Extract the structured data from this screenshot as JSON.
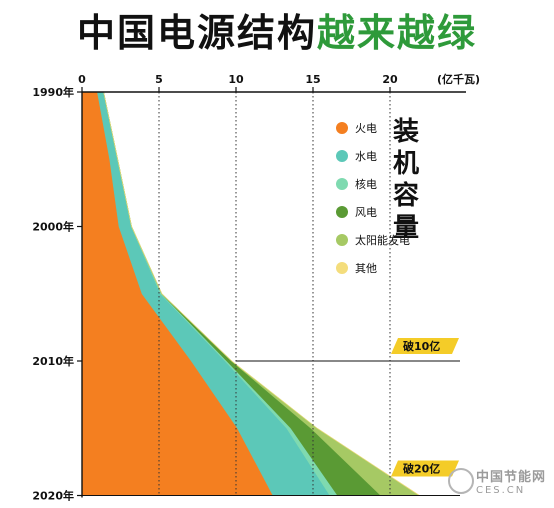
{
  "title": {
    "part1": "中国电源结构",
    "part2": "越来越绿"
  },
  "x_unit": "(亿千瓦)",
  "side_label": [
    "装",
    "机",
    "容",
    "量"
  ],
  "watermark": {
    "main": "中国节能网",
    "sub": "CES.CN"
  },
  "colors": {
    "coal": "#f47f20",
    "hydro": "#5cc8b8",
    "nuclear": "#7fdab0",
    "wind": "#5a9a34",
    "solar": "#a6c964",
    "other": "#f4dd7c",
    "title_green": "#2e9a3a",
    "callout": "#f4cc28"
  },
  "chart_data": {
    "type": "area",
    "orientation": "horizontal-stacked",
    "x_ticks": [
      0,
      5,
      10,
      15,
      20
    ],
    "xlim": [
      0,
      23
    ],
    "y": [
      1990,
      1995,
      2000,
      2005,
      2010,
      2015,
      2020
    ],
    "y_ticks": [
      "1990年",
      "2000年",
      "2010年",
      "2020年"
    ],
    "grid": "dotted vertical at 5, 10, 15, 20",
    "legend": "top-right",
    "series": [
      {
        "name": "火电",
        "color": "#f47f20",
        "values": [
          1.0,
          1.8,
          2.4,
          3.9,
          7.1,
          10.1,
          12.4
        ]
      },
      {
        "name": "水电",
        "color": "#5cc8b8",
        "values": [
          0.4,
          0.5,
          0.8,
          1.2,
          2.2,
          3.2,
          3.7
        ]
      },
      {
        "name": "核电",
        "color": "#7fdab0",
        "values": [
          0.0,
          0.02,
          0.02,
          0.07,
          0.11,
          0.27,
          0.5
        ]
      },
      {
        "name": "风电",
        "color": "#5a9a34",
        "values": [
          0.0,
          0.0,
          0.004,
          0.01,
          0.3,
          1.3,
          2.8
        ]
      },
      {
        "name": "太阳能发电",
        "color": "#a6c964",
        "values": [
          0.0,
          0.0,
          0.0,
          0.0,
          0.01,
          0.4,
          2.5
        ]
      },
      {
        "name": "其他",
        "color": "#f4dd7c",
        "values": [
          0.0,
          0.0,
          0.0,
          0.0,
          0.0,
          0.0,
          0.02
        ]
      }
    ],
    "annotations": [
      {
        "label": "破10亿",
        "year": 2010
      },
      {
        "label": "破20亿",
        "year": 2020
      }
    ]
  }
}
